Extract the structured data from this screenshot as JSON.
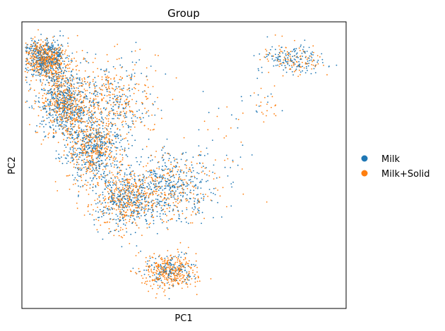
{
  "chart_data": {
    "type": "scatter",
    "title": "Group",
    "xlabel": "PC1",
    "ylabel": "PC2",
    "xlim": [
      0,
      1
    ],
    "ylim": [
      0,
      1
    ],
    "ticks": "none",
    "grid": false,
    "legend_position": "right",
    "series": [
      {
        "name": "Milk",
        "color": "#1f77b4"
      },
      {
        "name": "Milk+Solid",
        "color": "#ff7f0e"
      }
    ],
    "clusters": [
      {
        "x": 0.07,
        "y": 0.87,
        "sx": 0.035,
        "sy": 0.035,
        "n": 900,
        "w_milk": 0.45
      },
      {
        "x": 0.13,
        "y": 0.72,
        "sx": 0.04,
        "sy": 0.06,
        "n": 900,
        "w_milk": 0.55
      },
      {
        "x": 0.22,
        "y": 0.55,
        "sx": 0.045,
        "sy": 0.06,
        "n": 800,
        "w_milk": 0.55
      },
      {
        "x": 0.32,
        "y": 0.38,
        "sx": 0.05,
        "sy": 0.05,
        "n": 700,
        "w_milk": 0.45
      },
      {
        "x": 0.46,
        "y": 0.13,
        "sx": 0.04,
        "sy": 0.03,
        "n": 500,
        "w_milk": 0.3
      },
      {
        "x": 0.28,
        "y": 0.73,
        "sx": 0.07,
        "sy": 0.07,
        "n": 500,
        "w_milk": 0.4
      },
      {
        "x": 0.47,
        "y": 0.43,
        "sx": 0.07,
        "sy": 0.06,
        "n": 600,
        "w_milk": 0.6
      },
      {
        "x": 0.84,
        "y": 0.87,
        "sx": 0.05,
        "sy": 0.025,
        "n": 250,
        "w_milk": 0.6
      },
      {
        "x": 0.75,
        "y": 0.72,
        "sx": 0.03,
        "sy": 0.03,
        "n": 30,
        "w_milk": 0.4
      },
      {
        "x": 0.62,
        "y": 0.6,
        "sx": 0.05,
        "sy": 0.08,
        "n": 40,
        "w_milk": 0.5
      }
    ]
  }
}
